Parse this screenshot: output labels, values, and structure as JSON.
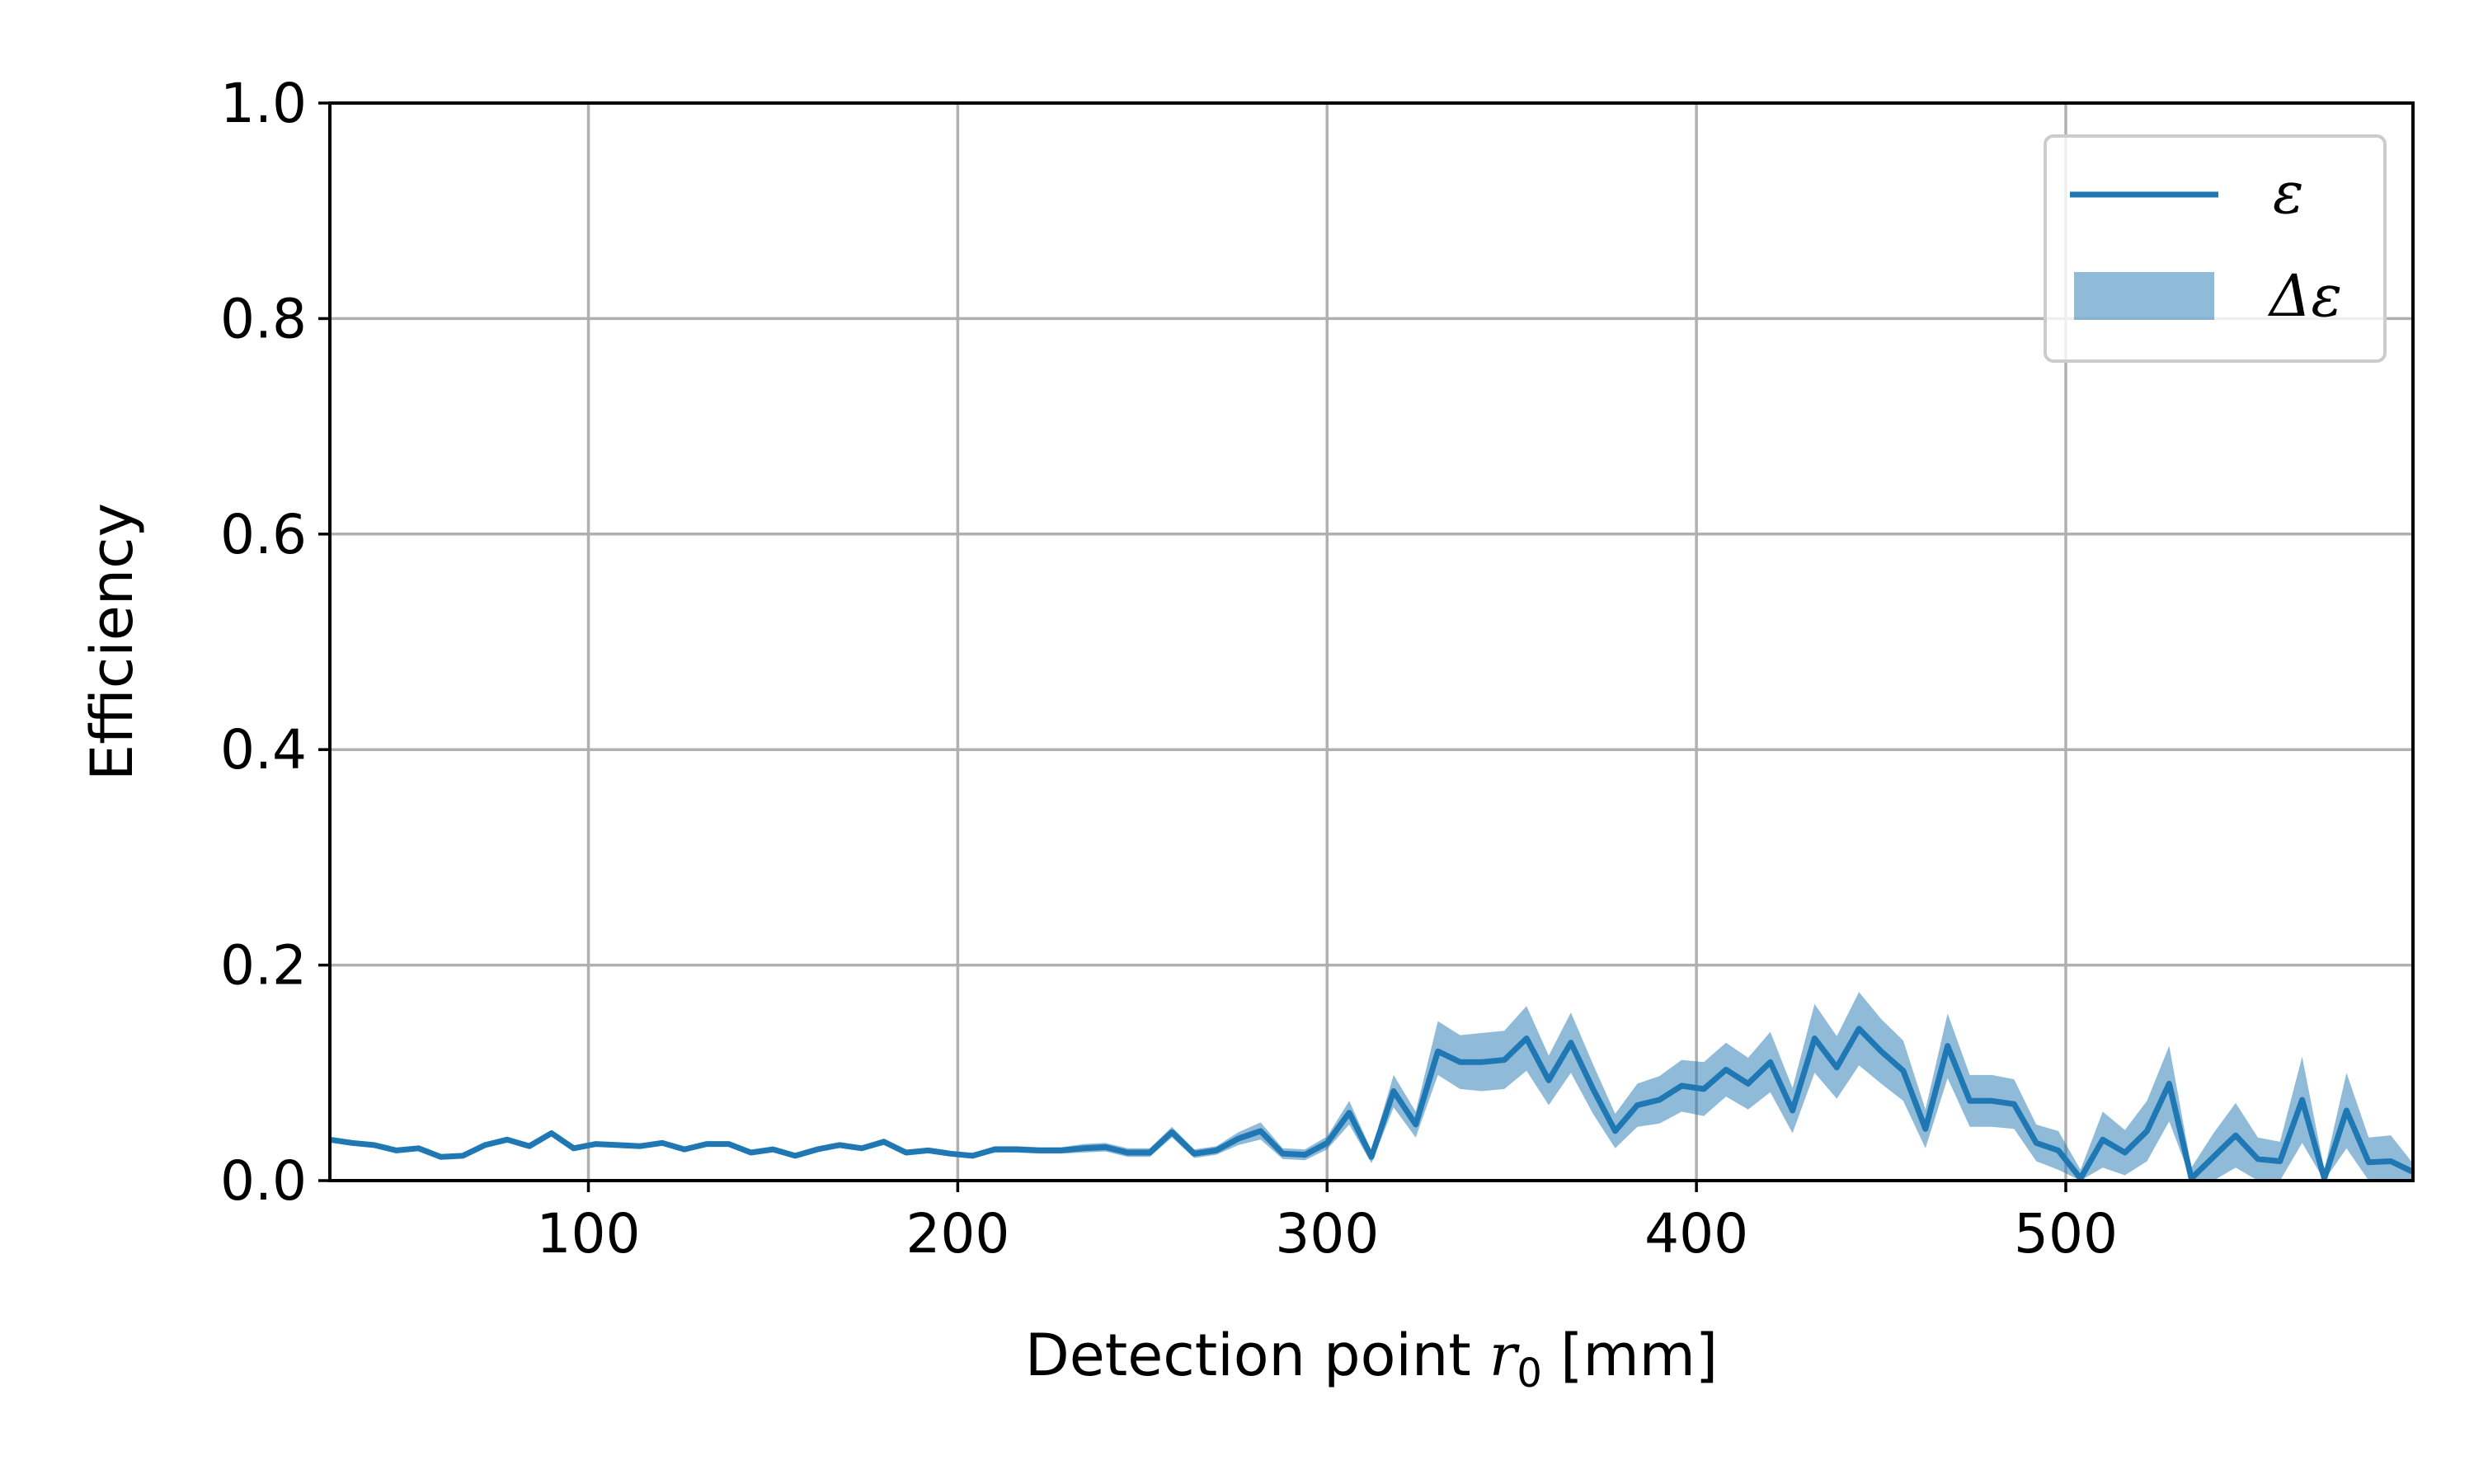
{
  "chart_data": {
    "type": "line",
    "title": "",
    "xlabel": "Detection point ",
    "xlabel_var": "r",
    "xlabel_sub": "0",
    "xlabel_unit": " [mm]",
    "ylabel": "Efficiency",
    "xlim": [
      30,
      594
    ],
    "ylim": [
      0.0,
      1.0
    ],
    "xticks": [
      100,
      200,
      300,
      400,
      500
    ],
    "xtick_labels": [
      "100",
      "200",
      "300",
      "400",
      "500"
    ],
    "yticks": [
      0.0,
      0.2,
      0.4,
      0.6,
      0.8,
      1.0
    ],
    "ytick_labels": [
      "0.0",
      "0.2",
      "0.4",
      "0.6",
      "0.8",
      "1.0"
    ],
    "grid": true,
    "legend_position": "top-right",
    "legend": [
      "ε",
      "Δε"
    ],
    "colors": {
      "line": "#1f77b4",
      "band": "#1f77b4",
      "grid": "#b0b0b0"
    },
    "series": [
      {
        "name": "ε",
        "x": [
          30,
          36,
          42,
          48,
          54,
          60,
          66,
          72,
          78,
          84,
          90,
          96,
          102,
          108,
          114,
          120,
          126,
          132,
          138,
          144,
          150,
          156,
          162,
          168,
          174,
          180,
          186,
          192,
          198,
          204,
          210,
          216,
          222,
          228,
          234,
          240,
          246,
          252,
          258,
          264,
          270,
          276,
          282,
          288,
          294,
          300,
          306,
          312,
          318,
          324,
          330,
          336,
          342,
          348,
          354,
          360,
          366,
          372,
          378,
          384,
          390,
          396,
          402,
          408,
          414,
          420,
          426,
          432,
          438,
          444,
          450,
          456,
          462,
          468,
          474,
          480,
          486,
          492,
          498,
          504,
          510,
          516,
          522,
          528,
          534,
          540,
          546,
          552,
          558,
          564,
          570,
          576,
          582,
          588,
          594
        ],
        "values": [
          0.038,
          0.035,
          0.033,
          0.028,
          0.03,
          0.022,
          0.023,
          0.033,
          0.038,
          0.032,
          0.044,
          0.03,
          0.034,
          0.033,
          0.032,
          0.035,
          0.029,
          0.034,
          0.034,
          0.026,
          0.029,
          0.023,
          0.029,
          0.033,
          0.03,
          0.036,
          0.026,
          0.028,
          0.025,
          0.023,
          0.029,
          0.029,
          0.028,
          0.028,
          0.03,
          0.031,
          0.026,
          0.026,
          0.045,
          0.025,
          0.028,
          0.039,
          0.046,
          0.025,
          0.024,
          0.035,
          0.063,
          0.022,
          0.083,
          0.052,
          0.12,
          0.11,
          0.11,
          0.112,
          0.132,
          0.093,
          0.128,
          0.085,
          0.046,
          0.07,
          0.075,
          0.088,
          0.085,
          0.103,
          0.09,
          0.11,
          0.065,
          0.132,
          0.105,
          0.141,
          0.12,
          0.102,
          0.048,
          0.125,
          0.074,
          0.074,
          0.071,
          0.035,
          0.028,
          0.002,
          0.038,
          0.026,
          0.046,
          0.09,
          0.002,
          0.022,
          0.042,
          0.02,
          0.018,
          0.075,
          0.002,
          0.065,
          0.017,
          0.018,
          0.008
        ]
      },
      {
        "name": "Δε",
        "lower": [
          0.036,
          0.033,
          0.031,
          0.026,
          0.028,
          0.02,
          0.021,
          0.031,
          0.036,
          0.03,
          0.041,
          0.028,
          0.032,
          0.031,
          0.03,
          0.033,
          0.027,
          0.032,
          0.032,
          0.024,
          0.027,
          0.021,
          0.027,
          0.031,
          0.028,
          0.033,
          0.024,
          0.026,
          0.023,
          0.021,
          0.026,
          0.026,
          0.025,
          0.025,
          0.026,
          0.027,
          0.022,
          0.022,
          0.04,
          0.021,
          0.024,
          0.033,
          0.038,
          0.02,
          0.019,
          0.029,
          0.052,
          0.016,
          0.068,
          0.04,
          0.098,
          0.085,
          0.083,
          0.085,
          0.102,
          0.07,
          0.1,
          0.062,
          0.03,
          0.05,
          0.053,
          0.064,
          0.06,
          0.078,
          0.066,
          0.082,
          0.044,
          0.1,
          0.076,
          0.107,
          0.09,
          0.074,
          0.03,
          0.095,
          0.05,
          0.05,
          0.048,
          0.018,
          0.01,
          0.0,
          0.012,
          0.005,
          0.018,
          0.055,
          0.0,
          0.0,
          0.012,
          0.0,
          0.0,
          0.035,
          0.0,
          0.03,
          0.0,
          0.0,
          0.0
        ],
        "upper": [
          0.04,
          0.037,
          0.035,
          0.03,
          0.032,
          0.024,
          0.025,
          0.035,
          0.04,
          0.034,
          0.047,
          0.032,
          0.036,
          0.035,
          0.034,
          0.037,
          0.031,
          0.036,
          0.036,
          0.028,
          0.031,
          0.025,
          0.031,
          0.035,
          0.032,
          0.039,
          0.028,
          0.03,
          0.027,
          0.025,
          0.032,
          0.032,
          0.031,
          0.031,
          0.034,
          0.035,
          0.03,
          0.03,
          0.05,
          0.029,
          0.032,
          0.045,
          0.054,
          0.03,
          0.029,
          0.041,
          0.074,
          0.028,
          0.098,
          0.064,
          0.148,
          0.135,
          0.137,
          0.139,
          0.162,
          0.116,
          0.156,
          0.108,
          0.062,
          0.09,
          0.097,
          0.112,
          0.11,
          0.128,
          0.114,
          0.138,
          0.086,
          0.164,
          0.134,
          0.175,
          0.15,
          0.13,
          0.066,
          0.155,
          0.098,
          0.098,
          0.094,
          0.052,
          0.046,
          0.01,
          0.064,
          0.047,
          0.074,
          0.125,
          0.012,
          0.044,
          0.072,
          0.04,
          0.036,
          0.115,
          0.01,
          0.1,
          0.04,
          0.042,
          0.016
        ]
      }
    ]
  }
}
